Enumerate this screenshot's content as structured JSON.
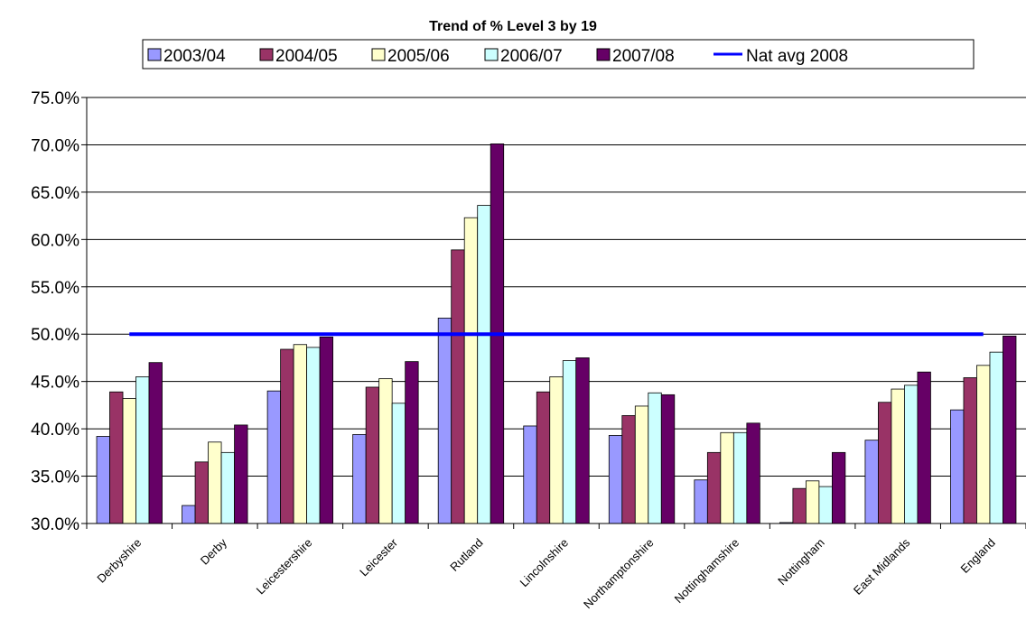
{
  "chart_data": {
    "type": "bar",
    "title": "Trend of % Level 3 by 19",
    "categories": [
      "Derbyshire",
      "Derby",
      "Leicestershire",
      "Leicester",
      "Rutland",
      "Lincolnshire",
      "Northamptonshire",
      "Nottinghamshire",
      "Nottingham",
      "East Midlands",
      "England"
    ],
    "series": [
      {
        "name": "2003/04",
        "color": "#9999ff",
        "values": [
          39.2,
          31.9,
          44.0,
          39.4,
          51.7,
          40.3,
          39.3,
          34.6,
          30.1,
          38.8,
          42.0
        ]
      },
      {
        "name": "2004/05",
        "color": "#993366",
        "values": [
          43.9,
          36.5,
          48.4,
          44.4,
          58.9,
          43.9,
          41.4,
          37.5,
          33.7,
          42.8,
          45.4
        ]
      },
      {
        "name": "2005/06",
        "color": "#ffffcc",
        "values": [
          43.2,
          38.6,
          48.9,
          45.3,
          62.3,
          45.5,
          42.4,
          39.6,
          34.5,
          44.2,
          46.7
        ]
      },
      {
        "name": "2006/07",
        "color": "#ccffff",
        "values": [
          45.5,
          37.5,
          48.6,
          42.7,
          63.6,
          47.2,
          43.8,
          39.6,
          33.9,
          44.6,
          48.1
        ]
      },
      {
        "name": "2007/08",
        "color": "#660066",
        "values": [
          47.0,
          40.4,
          49.7,
          47.1,
          70.1,
          47.5,
          43.6,
          40.6,
          37.5,
          46.0,
          49.8
        ]
      }
    ],
    "reference_line": {
      "name": "Nat avg 2008",
      "value": 50.0,
      "color": "#0000ff"
    },
    "ylim": [
      30.0,
      75.0
    ],
    "yticks": [
      "30.0%",
      "35.0%",
      "40.0%",
      "45.0%",
      "50.0%",
      "55.0%",
      "60.0%",
      "65.0%",
      "70.0%",
      "75.0%"
    ],
    "grid": true,
    "legend_position": "top"
  }
}
